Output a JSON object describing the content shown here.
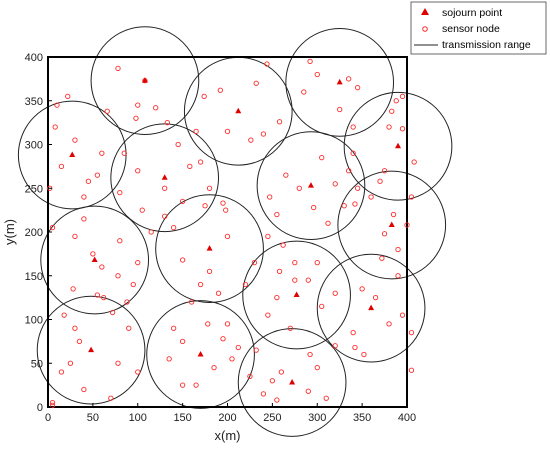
{
  "chart_data": {
    "type": "scatter",
    "title": "",
    "xlabel": "x(m)",
    "ylabel": "y(m)",
    "xlim": [
      0,
      400
    ],
    "ylim": [
      0,
      400
    ],
    "xticks": [
      0,
      50,
      100,
      150,
      200,
      250,
      300,
      350,
      400
    ],
    "yticks": [
      0,
      50,
      100,
      150,
      200,
      250,
      300,
      350,
      400
    ],
    "grid": false,
    "legend_position": "top-right",
    "colors": {
      "sensor": "#ff2a2a",
      "sojourn": "#e00000",
      "range": "#222222"
    },
    "legend": [
      {
        "label": "sojourn point",
        "marker": "triangle"
      },
      {
        "label": "sensor node",
        "marker": "circle"
      },
      {
        "label": "transmission range",
        "marker": "line"
      }
    ],
    "transmission_radius": 60,
    "sojourn_points": [
      [
        108,
        373
      ],
      [
        212,
        338
      ],
      [
        325,
        371
      ],
      [
        27,
        288
      ],
      [
        130,
        262
      ],
      [
        293,
        253
      ],
      [
        390,
        298
      ],
      [
        180,
        181
      ],
      [
        52,
        168
      ],
      [
        383,
        208
      ],
      [
        277,
        128
      ],
      [
        360,
        113
      ],
      [
        48,
        65
      ],
      [
        170,
        60
      ],
      [
        272,
        28
      ]
    ],
    "sensor_nodes": [
      [
        78,
        387
      ],
      [
        108,
        373
      ],
      [
        100,
        345
      ],
      [
        120,
        342
      ],
      [
        133,
        325
      ],
      [
        66,
        338
      ],
      [
        98,
        330
      ],
      [
        174,
        355
      ],
      [
        192,
        362
      ],
      [
        244,
        392
      ],
      [
        232,
        370
      ],
      [
        258,
        326
      ],
      [
        240,
        312
      ],
      [
        200,
        315
      ],
      [
        226,
        305
      ],
      [
        292,
        395
      ],
      [
        300,
        380
      ],
      [
        285,
        360
      ],
      [
        335,
        375
      ],
      [
        345,
        365
      ],
      [
        325,
        340
      ],
      [
        340,
        320
      ],
      [
        383,
        338
      ],
      [
        388,
        350
      ],
      [
        395,
        318
      ],
      [
        408,
        280
      ],
      [
        375,
        270
      ],
      [
        370,
        258
      ],
      [
        360,
        240
      ],
      [
        400,
        208
      ],
      [
        385,
        220
      ],
      [
        375,
        198
      ],
      [
        390,
        180
      ],
      [
        372,
        170
      ],
      [
        405,
        240
      ],
      [
        340,
        290
      ],
      [
        335,
        270
      ],
      [
        345,
        250
      ],
      [
        305,
        285
      ],
      [
        280,
        250
      ],
      [
        265,
        265
      ],
      [
        296,
        228
      ],
      [
        330,
        230
      ],
      [
        320,
        255
      ],
      [
        247,
        240
      ],
      [
        255,
        220
      ],
      [
        312,
        210
      ],
      [
        342,
        232
      ],
      [
        10,
        345
      ],
      [
        22,
        355
      ],
      [
        8,
        320
      ],
      [
        30,
        305
      ],
      [
        15,
        275
      ],
      [
        40,
        240
      ],
      [
        55,
        265
      ],
      [
        60,
        290
      ],
      [
        45,
        258
      ],
      [
        85,
        290
      ],
      [
        100,
        270
      ],
      [
        105,
        225
      ],
      [
        130,
        250
      ],
      [
        130,
        218
      ],
      [
        150,
        235
      ],
      [
        158,
        275
      ],
      [
        145,
        300
      ],
      [
        165,
        315
      ],
      [
        170,
        280
      ],
      [
        180,
        250
      ],
      [
        195,
        233
      ],
      [
        140,
        205
      ],
      [
        175,
        230
      ],
      [
        80,
        245
      ],
      [
        115,
        200
      ],
      [
        198,
        225
      ],
      [
        2,
        250
      ],
      [
        5,
        205
      ],
      [
        30,
        195
      ],
      [
        40,
        215
      ],
      [
        50,
        175
      ],
      [
        60,
        160
      ],
      [
        78,
        150
      ],
      [
        62,
        125
      ],
      [
        72,
        108
      ],
      [
        28,
        135
      ],
      [
        55,
        128
      ],
      [
        95,
        140
      ],
      [
        100,
        165
      ],
      [
        80,
        190
      ],
      [
        200,
        195
      ],
      [
        180,
        155
      ],
      [
        170,
        140
      ],
      [
        160,
        120
      ],
      [
        150,
        168
      ],
      [
        190,
        130
      ],
      [
        220,
        140
      ],
      [
        245,
        195
      ],
      [
        230,
        165
      ],
      [
        258,
        155
      ],
      [
        262,
        185
      ],
      [
        275,
        165
      ],
      [
        290,
        145
      ],
      [
        305,
        115
      ],
      [
        320,
        130
      ],
      [
        300,
        165
      ],
      [
        270,
        90
      ],
      [
        292,
        60
      ],
      [
        245,
        105
      ],
      [
        255,
        125
      ],
      [
        275,
        145
      ],
      [
        320,
        70
      ],
      [
        340,
        85
      ],
      [
        350,
        135
      ],
      [
        365,
        125
      ],
      [
        390,
        150
      ],
      [
        395,
        105
      ],
      [
        380,
        95
      ],
      [
        405,
        85
      ],
      [
        405,
        42
      ],
      [
        352,
        60
      ],
      [
        342,
        68
      ],
      [
        30,
        90
      ],
      [
        18,
        105
      ],
      [
        15,
        40
      ],
      [
        5,
        5
      ],
      [
        25,
        50
      ],
      [
        35,
        75
      ],
      [
        40,
        20
      ],
      [
        70,
        10
      ],
      [
        78,
        50
      ],
      [
        88,
        120
      ],
      [
        90,
        90
      ],
      [
        100,
        40
      ],
      [
        140,
        90
      ],
      [
        150,
        75
      ],
      [
        135,
        55
      ],
      [
        150,
        25
      ],
      [
        165,
        25
      ],
      [
        185,
        45
      ],
      [
        195,
        78
      ],
      [
        200,
        95
      ],
      [
        205,
        55
      ],
      [
        178,
        95
      ],
      [
        232,
        65
      ],
      [
        225,
        35
      ],
      [
        240,
        15
      ],
      [
        250,
        30
      ],
      [
        255,
        8
      ],
      [
        260,
        40
      ],
      [
        290,
        18
      ],
      [
        300,
        45
      ],
      [
        310,
        10
      ],
      [
        212,
        68
      ],
      [
        5,
        2
      ],
      [
        395,
        355
      ],
      [
        380,
        320
      ]
    ]
  }
}
